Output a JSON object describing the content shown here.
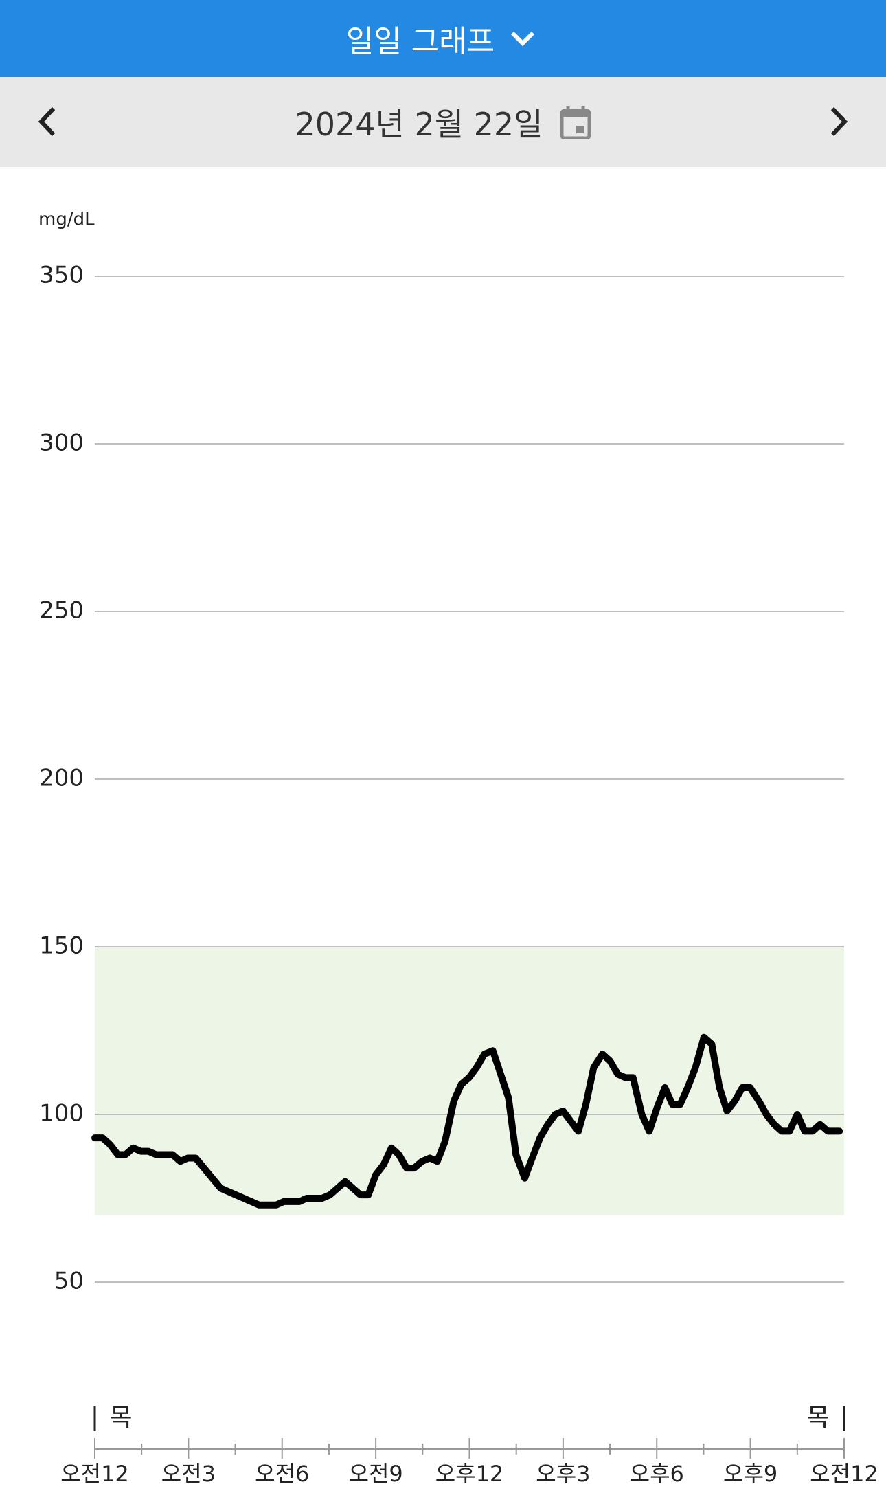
{
  "header": {
    "title": "일일 그래프"
  },
  "date_bar": {
    "date": "2024년 2월 22일"
  },
  "chart_data": {
    "type": "line",
    "y_label": "mg/dL",
    "x": [
      0,
      0.25,
      0.49,
      0.74,
      0.98,
      1.23,
      1.48,
      1.72,
      1.97,
      2.21,
      2.49,
      2.74,
      2.98,
      3.23,
      4.03,
      5.26,
      5.81,
      6.05,
      6.55,
      6.79,
      7.28,
      7.53,
      8.02,
      8.51,
      8.76,
      9.0,
      9.25,
      9.5,
      9.74,
      9.99,
      10.23,
      10.48,
      10.73,
      10.97,
      11.22,
      11.5,
      11.74,
      11.99,
      12.23,
      12.48,
      12.75,
      13.25,
      13.49,
      13.77,
      14.01,
      14.26,
      14.51,
      14.75,
      15.0,
      15.24,
      15.49,
      15.73,
      15.98,
      16.26,
      16.5,
      16.75,
      16.99,
      17.24,
      17.52,
      17.76,
      18.01,
      18.26,
      18.5,
      18.75,
      18.99,
      19.24,
      19.51,
      19.76,
      20.01,
      20.25,
      20.5,
      20.74,
      20.99,
      21.27,
      21.51,
      21.76,
      22.0,
      22.25,
      22.5,
      22.74,
      22.99,
      23.23,
      23.48,
      23.85
    ],
    "series": [
      {
        "name": "glucose",
        "color": "#000000",
        "values": [
          93,
          93,
          91,
          88,
          88,
          90,
          89,
          89,
          88,
          88,
          88,
          86,
          87,
          87,
          78,
          73,
          73,
          74,
          74,
          75,
          75,
          76,
          80,
          76,
          76,
          82,
          85,
          90,
          88,
          84,
          84,
          86,
          87,
          86,
          92,
          104,
          109,
          111,
          114,
          118,
          119,
          105,
          88,
          81,
          87,
          93,
          97,
          100,
          101,
          98,
          95,
          103,
          114,
          118,
          116,
          112,
          111,
          111,
          100,
          95,
          102,
          108,
          103,
          103,
          108,
          114,
          123,
          121,
          108,
          101,
          104,
          108,
          108,
          104,
          100,
          97,
          95,
          95,
          100,
          95,
          95,
          97,
          95,
          95
        ]
      }
    ],
    "xlim": [
      0,
      24
    ],
    "xticks": [
      {
        "value": 0,
        "label": "오전12"
      },
      {
        "value": 3,
        "label": "오전3"
      },
      {
        "value": 6,
        "label": "오전6"
      },
      {
        "value": 9,
        "label": "오전9"
      },
      {
        "value": 12,
        "label": "오후12"
      },
      {
        "value": 15,
        "label": "오후3"
      },
      {
        "value": 18,
        "label": "오후6"
      },
      {
        "value": 21,
        "label": "오후9"
      },
      {
        "value": 24,
        "label": "오전12"
      }
    ],
    "ylim": [
      50,
      350
    ],
    "yticks": [
      50,
      100,
      150,
      200,
      250,
      300,
      350
    ],
    "grid": true,
    "target_range": [
      70,
      150
    ],
    "target_color": "#edf5e6",
    "day_labels": [
      {
        "x": 0,
        "label": "목"
      },
      {
        "x": 24,
        "label": "목"
      }
    ]
  }
}
